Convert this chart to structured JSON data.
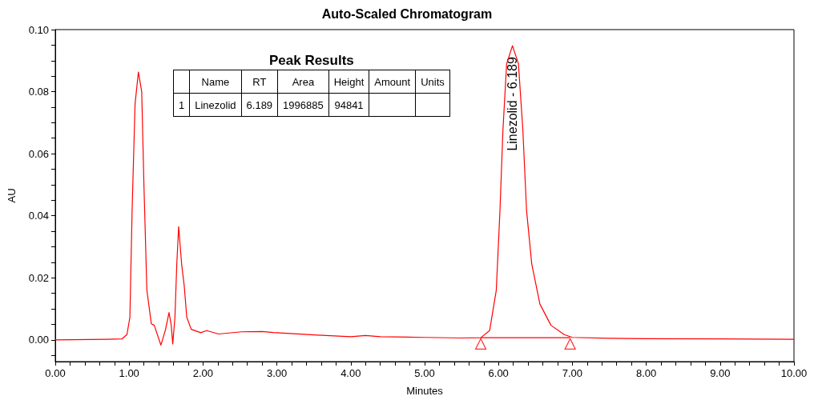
{
  "chart_data": {
    "type": "line",
    "title": "Auto-Scaled Chromatogram",
    "xlabel": "Minutes",
    "ylabel": "AU",
    "series": [
      {
        "color": "#ff0000",
        "x": [
          0,
          0.7,
          0.9,
          0.97,
          1.01,
          1.04,
          1.08,
          1.125,
          1.17,
          1.2,
          1.24,
          1.3,
          1.34,
          1.43,
          1.49,
          1.54,
          1.57,
          1.59,
          1.62,
          1.645,
          1.67,
          1.71,
          1.745,
          1.78,
          1.84,
          1.97,
          2.05,
          2.21,
          2.52,
          2.8,
          2.95,
          3.5,
          4.0,
          4.2,
          4.4,
          5.0,
          5.5,
          5.76,
          5.88,
          5.97,
          6.02,
          6.06,
          6.11,
          6.189,
          6.27,
          6.33,
          6.38,
          6.45,
          6.56,
          6.71,
          6.89,
          7.0,
          7.5,
          8.0,
          9.0,
          10.0
        ],
        "values": [
          0,
          0.0002,
          0.0003,
          0.0017,
          0.0073,
          0.0417,
          0.076,
          0.0863,
          0.08,
          0.05,
          0.016,
          0.0052,
          0.0047,
          -0.0017,
          0.0031,
          0.0088,
          0.0047,
          -0.0013,
          0.0073,
          0.0245,
          0.0365,
          0.0245,
          0.0176,
          0.0073,
          0.0034,
          0.0023,
          0.003,
          0.0019,
          0.0026,
          0.0027,
          0.0024,
          0.0016,
          0.001,
          0.0014,
          0.001,
          0.0008,
          0.0006,
          0.0007,
          0.003,
          0.016,
          0.0417,
          0.0675,
          0.0889,
          0.0948,
          0.089,
          0.0675,
          0.0417,
          0.0245,
          0.0116,
          0.0047,
          0.0017,
          0.0008,
          0.0005,
          0.0004,
          0.0003,
          0.0002
        ],
        "marker": "none"
      },
      {
        "color": "#ff0000",
        "x": [
          5.76,
          6.97
        ],
        "values": [
          0.0007,
          0.0007
        ],
        "marker": "none"
      },
      {
        "type": "scatter",
        "color": "#ff0000",
        "x": [
          5.76,
          6.97
        ],
        "values": [
          -0.0013,
          -0.0013
        ],
        "marker": "triangle"
      }
    ],
    "xlim": [
      0,
      10
    ],
    "ylim": [
      -0.007,
      0.1
    ],
    "xticks": [
      {
        "value": 0,
        "label": "0.00"
      },
      {
        "value": 0.2,
        "label": null
      },
      {
        "value": 0.4,
        "label": null
      },
      {
        "value": 0.6,
        "label": null
      },
      {
        "value": 0.8,
        "label": null
      },
      {
        "value": 1,
        "label": "1.00"
      },
      {
        "value": 1.2,
        "label": null
      },
      {
        "value": 1.4,
        "label": null
      },
      {
        "value": 1.6,
        "label": null
      },
      {
        "value": 1.8,
        "label": null
      },
      {
        "value": 2,
        "label": "2.00"
      },
      {
        "value": 2.2,
        "label": null
      },
      {
        "value": 2.4,
        "label": null
      },
      {
        "value": 2.6,
        "label": null
      },
      {
        "value": 2.8,
        "label": null
      },
      {
        "value": 3,
        "label": "3.00"
      },
      {
        "value": 3.2,
        "label": null
      },
      {
        "value": 3.4,
        "label": null
      },
      {
        "value": 3.6,
        "label": null
      },
      {
        "value": 3.8,
        "label": null
      },
      {
        "value": 4,
        "label": "4.00"
      },
      {
        "value": 4.2,
        "label": null
      },
      {
        "value": 4.4,
        "label": null
      },
      {
        "value": 4.6,
        "label": null
      },
      {
        "value": 4.8,
        "label": null
      },
      {
        "value": 5,
        "label": "5.00"
      },
      {
        "value": 5.2,
        "label": null
      },
      {
        "value": 5.4,
        "label": null
      },
      {
        "value": 5.6,
        "label": null
      },
      {
        "value": 5.8,
        "label": null
      },
      {
        "value": 6,
        "label": "6.00"
      },
      {
        "value": 6.2,
        "label": null
      },
      {
        "value": 6.4,
        "label": null
      },
      {
        "value": 6.6,
        "label": null
      },
      {
        "value": 6.8,
        "label": null
      },
      {
        "value": 7,
        "label": "7.00"
      },
      {
        "value": 7.2,
        "label": null
      },
      {
        "value": 7.4,
        "label": null
      },
      {
        "value": 7.6,
        "label": null
      },
      {
        "value": 7.8,
        "label": null
      },
      {
        "value": 8,
        "label": "8.00"
      },
      {
        "value": 8.2,
        "label": null
      },
      {
        "value": 8.4,
        "label": null
      },
      {
        "value": 8.6,
        "label": null
      },
      {
        "value": 8.8,
        "label": null
      },
      {
        "value": 9,
        "label": "9.00"
      },
      {
        "value": 9.2,
        "label": null
      },
      {
        "value": 9.4,
        "label": null
      },
      {
        "value": 9.6,
        "label": null
      },
      {
        "value": 9.8,
        "label": null
      },
      {
        "value": 10,
        "label": "10.00"
      }
    ],
    "yticks": [
      {
        "value": -0.005,
        "label": null
      },
      {
        "value": 0,
        "label": "0.00"
      },
      {
        "value": 0.005,
        "label": null
      },
      {
        "value": 0.01,
        "label": null
      },
      {
        "value": 0.015,
        "label": null
      },
      {
        "value": 0.02,
        "label": "0.02"
      },
      {
        "value": 0.025,
        "label": null
      },
      {
        "value": 0.03,
        "label": null
      },
      {
        "value": 0.035,
        "label": null
      },
      {
        "value": 0.04,
        "label": "0.04"
      },
      {
        "value": 0.045,
        "label": null
      },
      {
        "value": 0.05,
        "label": null
      },
      {
        "value": 0.055,
        "label": null
      },
      {
        "value": 0.06,
        "label": "0.06"
      },
      {
        "value": 0.065,
        "label": null
      },
      {
        "value": 0.07,
        "label": null
      },
      {
        "value": 0.075,
        "label": null
      },
      {
        "value": 0.08,
        "label": "0.08"
      },
      {
        "value": 0.085,
        "label": null
      },
      {
        "value": 0.09,
        "label": null
      },
      {
        "value": 0.095,
        "label": null
      },
      {
        "value": 0.1,
        "label": "0.10"
      }
    ],
    "grid": false,
    "annotations": [
      {
        "text": "Linezolid - 6.189",
        "x": 6.189,
        "y": 0.0948
      },
      "Peak Results",
      "Name",
      "RT",
      "Area",
      "Height",
      "Amount",
      "Units",
      "1",
      "Linezolid",
      "6.189",
      "1996885",
      "94841"
    ]
  }
}
